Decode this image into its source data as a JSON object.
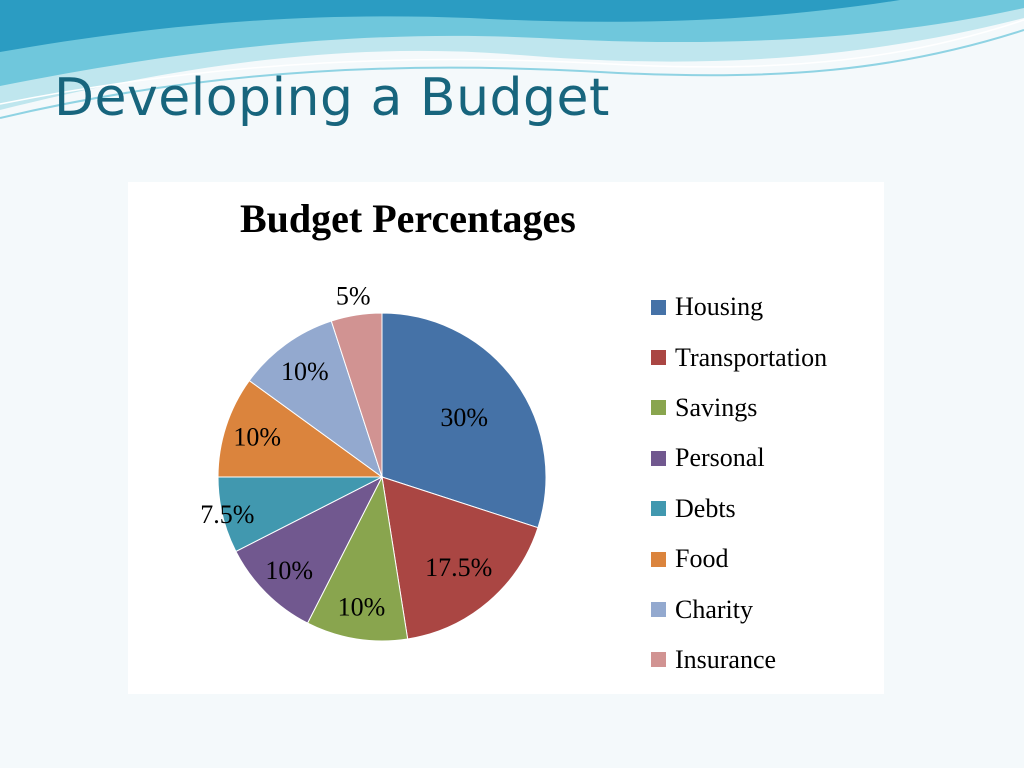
{
  "slide": {
    "title": "Developing a Budget"
  },
  "chart_data": {
    "type": "pie",
    "title": "Budget Percentages",
    "legend_position": "right",
    "slices": [
      {
        "label": "Housing",
        "value": 30,
        "value_label": "30%",
        "color": "#4572a7"
      },
      {
        "label": "Transportation",
        "value": 17.5,
        "value_label": "17.5%",
        "color": "#aa4643"
      },
      {
        "label": "Savings",
        "value": 10,
        "value_label": "10%",
        "color": "#89a54e"
      },
      {
        "label": "Personal",
        "value": 10,
        "value_label": "10%",
        "color": "#71588f"
      },
      {
        "label": "Debts",
        "value": 7.5,
        "value_label": "7.5%",
        "color": "#4198af"
      },
      {
        "label": "Food",
        "value": 10,
        "value_label": "10%",
        "color": "#db843d"
      },
      {
        "label": "Charity",
        "value": 10,
        "value_label": "10%",
        "color": "#93a9cf"
      },
      {
        "label": "Insurance",
        "value": 5,
        "value_label": "5%",
        "color": "#d19392"
      }
    ]
  }
}
